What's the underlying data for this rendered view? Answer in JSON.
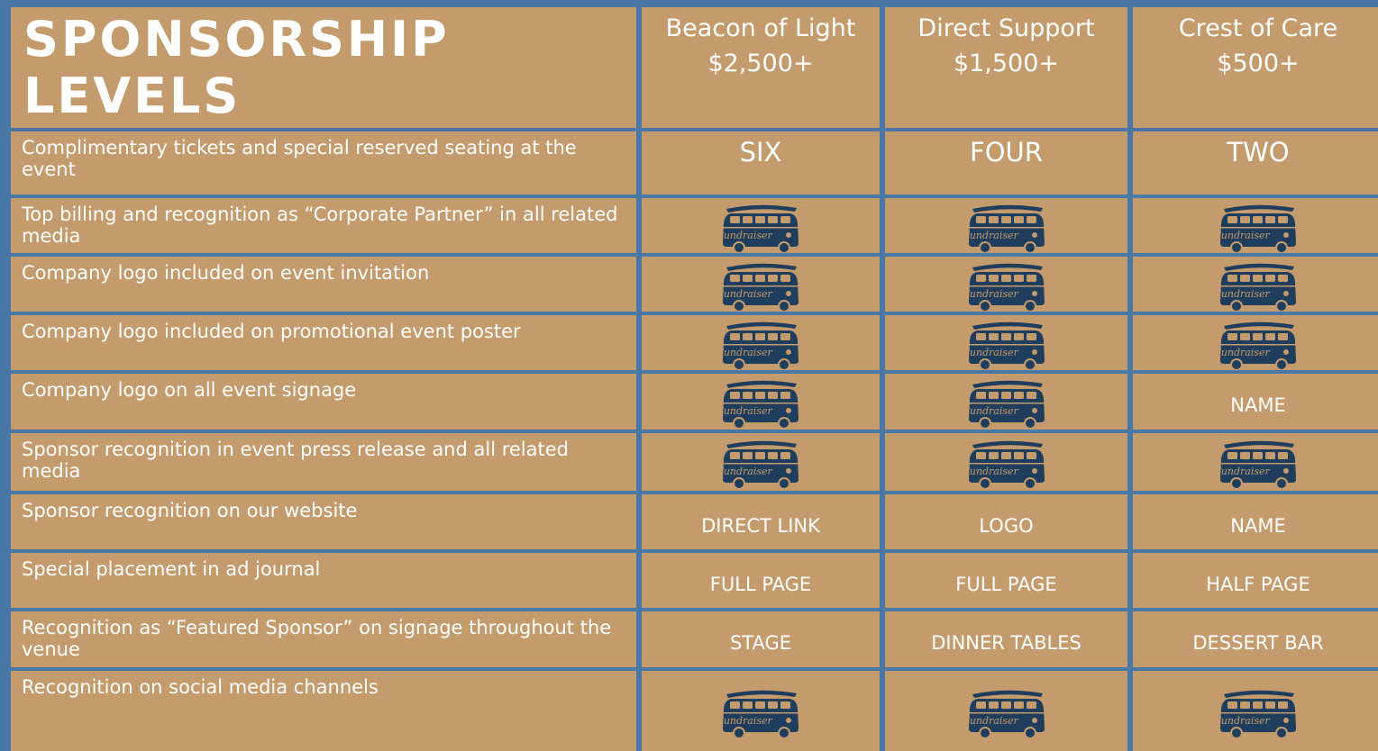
{
  "header": {
    "title": "SPONSORSHIP LEVELS",
    "levels": [
      {
        "name": "Beacon of Light",
        "price": "$2,500+"
      },
      {
        "name": "Direct   Support",
        "price": "$1,500+"
      },
      {
        "name": "Crest of Care",
        "price": "$500+"
      }
    ]
  },
  "rows": [
    {
      "benefit": "Complimentary tickets and special reserved seating at the event",
      "cells": [
        "SIX",
        "FOUR",
        "TWO"
      ]
    },
    {
      "benefit": "Top billing and recognition as “Corporate Partner” in all related media",
      "cells": [
        "Fundraiser",
        "Fundraiser",
        "Fundraiser"
      ]
    },
    {
      "benefit": "Company logo included on event invitation",
      "cells": [
        "Fundraiser",
        "Fundraiser",
        "Fundraiser"
      ]
    },
    {
      "benefit": "Company logo included on promotional event poster",
      "cells": [
        "Fundraiser",
        "Fundraiser",
        "Fundraiser"
      ]
    },
    {
      "benefit": "Company logo on all event signage",
      "cells": [
        "Fundraiser",
        "Fundraiser",
        "NAME"
      ]
    },
    {
      "benefit": "Sponsor recognition in event press release and all related media",
      "cells": [
        "Fundraiser",
        "Fundraiser",
        "Fundraiser"
      ]
    },
    {
      "benefit": "Sponsor recognition on our website",
      "cells": [
        "DIRECT LINK",
        "LOGO",
        "NAME"
      ]
    },
    {
      "benefit": "Special placement in ad journal",
      "cells": [
        "FULL PAGE",
        "FULL PAGE",
        "HALF PAGE"
      ]
    },
    {
      "benefit": "Recognition as “Featured Sponsor” on signage throughout the venue",
      "cells": [
        "STAGE",
        "DINNER TABLES",
        "DESSERT BAR"
      ]
    },
    {
      "benefit": "Recognition on social media channels",
      "cells": [
        "Fundraiser",
        "Fundraiser",
        "Fundraiser"
      ]
    }
  ]
}
